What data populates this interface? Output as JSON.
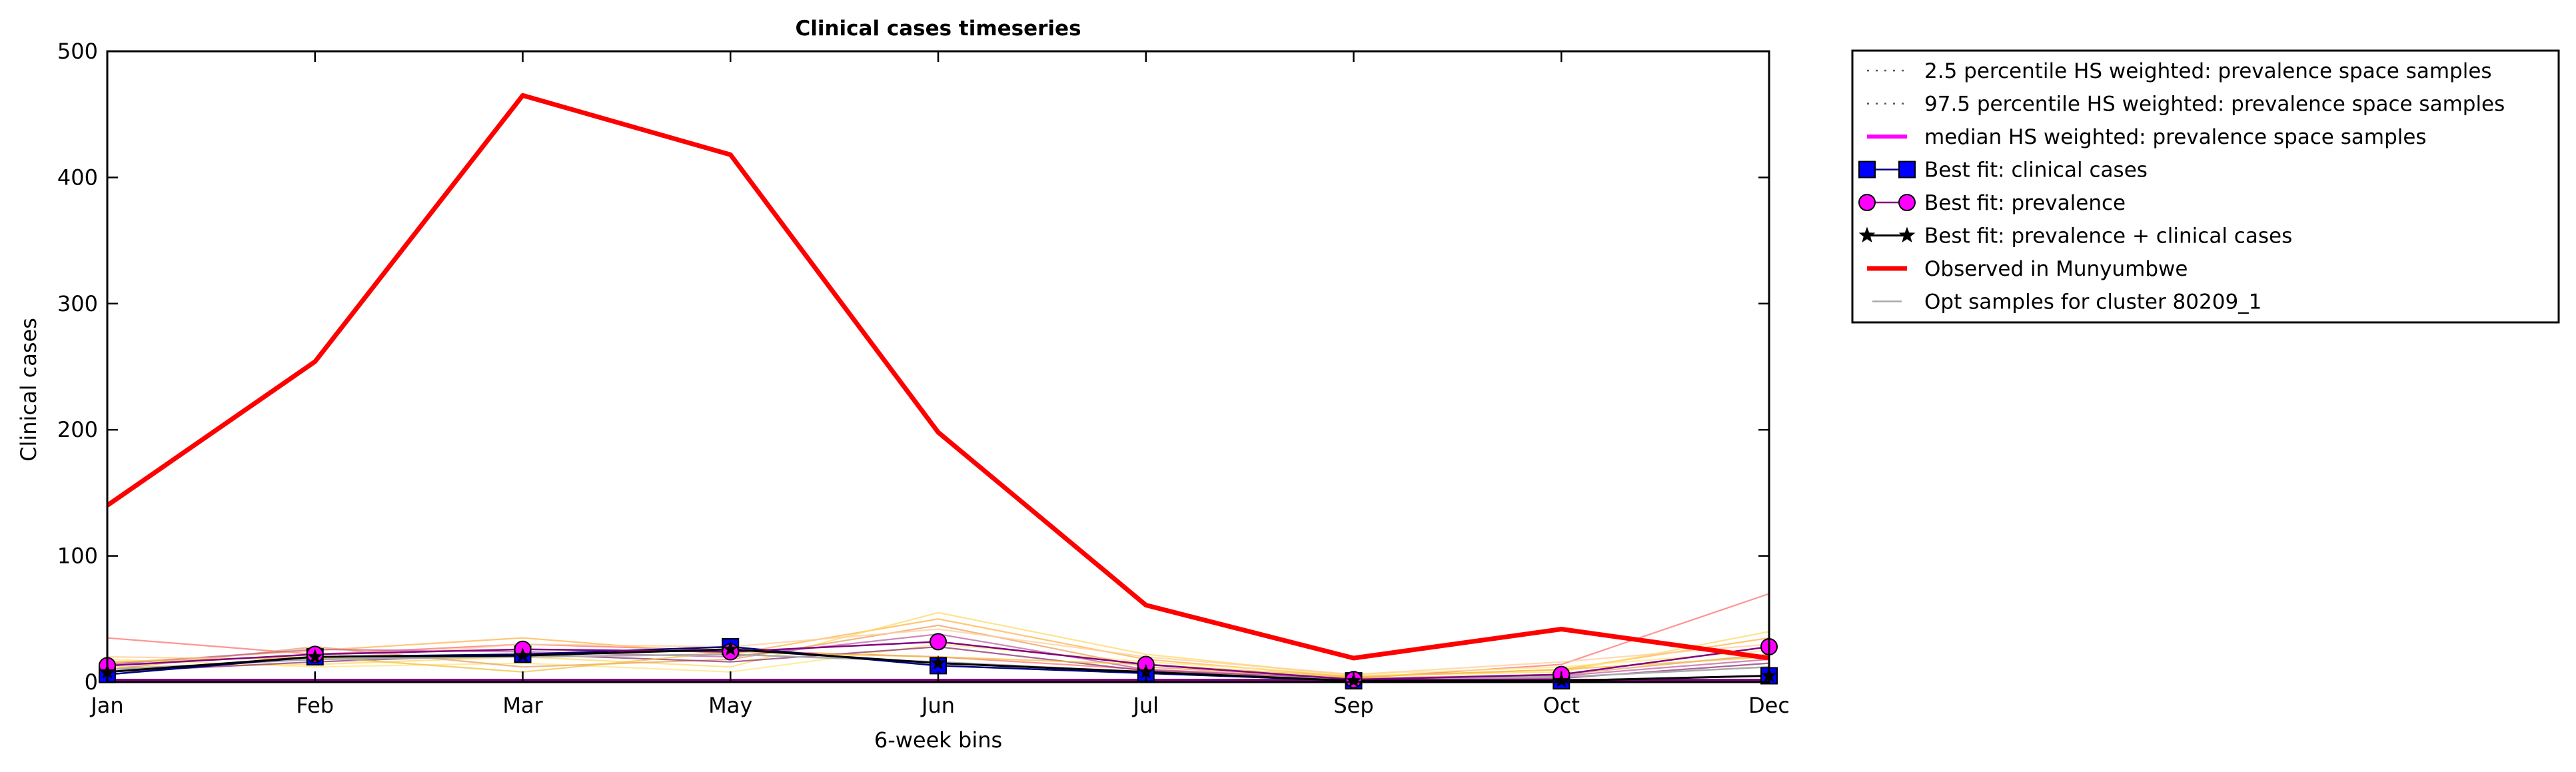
{
  "chart_data": {
    "type": "line",
    "title": "Clinical cases timeseries",
    "xlabel": "6-week bins",
    "ylabel": "Clinical cases",
    "categories": [
      "Jan",
      "Feb",
      "Mar",
      "May",
      "Jun",
      "Jul",
      "Sep",
      "Oct",
      "Dec"
    ],
    "ylim": [
      0,
      500
    ],
    "yticks": [
      0,
      100,
      200,
      300,
      400,
      500
    ],
    "grid": false,
    "legend_position": "outside-top-right",
    "series": [
      {
        "name": "2.5 percentile HS weighted: prevalence space samples",
        "style": "dotted",
        "color": "#555555",
        "values": [
          1,
          1,
          1,
          1,
          1,
          1,
          1,
          1,
          1
        ]
      },
      {
        "name": "97.5 percentile HS weighted: prevalence space samples",
        "style": "dotted",
        "color": "#555555",
        "values": [
          1.5,
          1.5,
          1.5,
          1.5,
          1.5,
          1.5,
          1.5,
          1.5,
          1.5
        ]
      },
      {
        "name": "median HS weighted: prevalence space samples",
        "style": "solid",
        "color": "#ff00ff",
        "values": [
          1,
          1,
          1,
          1,
          1,
          1,
          1,
          1,
          1
        ]
      },
      {
        "name": "Best fit: clinical cases",
        "style": "square-marker",
        "color": "#0000ff",
        "values": [
          6,
          20,
          22,
          28,
          13,
          7,
          1,
          1,
          5
        ]
      },
      {
        "name": "Best fit: prevalence",
        "style": "circle-marker",
        "color": "#ff00ff",
        "values": [
          13,
          22,
          26,
          24,
          32,
          14,
          2,
          6,
          28
        ]
      },
      {
        "name": "Best fit: prevalence + clinical cases",
        "style": "star-marker",
        "color": "#000000",
        "values": [
          8,
          20,
          21,
          26,
          15,
          8,
          1,
          1,
          5
        ]
      },
      {
        "name": "Observed in Munyumbwe",
        "style": "thick",
        "color": "#ff0000",
        "values": [
          140,
          254,
          465,
          418,
          198,
          61,
          19,
          42,
          19
        ]
      },
      {
        "name": "Opt samples for cluster 80209_1",
        "style": "thin",
        "color": "#aaaaaa",
        "values": [
          10,
          18,
          20,
          22,
          16,
          8,
          2,
          4,
          12
        ]
      }
    ],
    "opt_samples": [
      {
        "color": "#ff7070",
        "values": [
          35,
          22,
          30,
          25,
          20,
          10,
          3,
          14,
          70
        ]
      },
      {
        "color": "#ffb347",
        "values": [
          15,
          25,
          35,
          22,
          50,
          18,
          4,
          10,
          35
        ]
      },
      {
        "color": "#ffd966",
        "values": [
          12,
          14,
          20,
          12,
          55,
          22,
          5,
          8,
          40
        ]
      },
      {
        "color": "#ffe680",
        "values": [
          18,
          12,
          15,
          8,
          30,
          16,
          6,
          12,
          25
        ]
      },
      {
        "color": "#e8a060",
        "values": [
          10,
          28,
          12,
          18,
          45,
          12,
          3,
          6,
          22
        ]
      },
      {
        "color": "#c060a0",
        "values": [
          14,
          26,
          24,
          20,
          38,
          10,
          2,
          5,
          18
        ]
      },
      {
        "color": "#8a3070",
        "values": [
          8,
          16,
          22,
          16,
          28,
          9,
          2,
          3,
          15
        ]
      },
      {
        "color": "#ffcc99",
        "values": [
          20,
          18,
          30,
          28,
          42,
          20,
          6,
          16,
          30
        ]
      },
      {
        "color": "#f0c040",
        "values": [
          16,
          20,
          8,
          24,
          20,
          14,
          4,
          10,
          20
        ]
      }
    ]
  }
}
